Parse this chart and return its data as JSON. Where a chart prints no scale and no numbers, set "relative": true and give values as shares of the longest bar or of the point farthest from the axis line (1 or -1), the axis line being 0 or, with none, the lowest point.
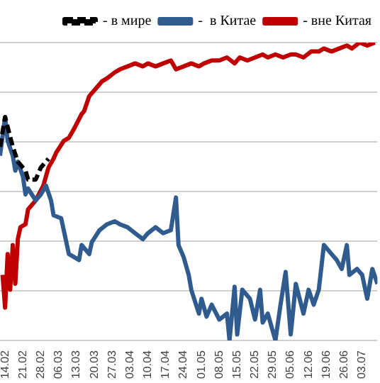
{
  "chart_data": {
    "type": "line",
    "relative": true,
    "grid": "y",
    "legend": "top",
    "xlim": [
      "--02-12",
      "--07-09"
    ],
    "xticks": [
      {
        "value": "--02-14",
        "label": "14.02"
      },
      {
        "value": "--02-21",
        "label": "21.02"
      },
      {
        "value": "--02-28",
        "label": "28.02"
      },
      {
        "value": "--03-06",
        "label": "06.03"
      },
      {
        "value": "--03-13",
        "label": "13.03"
      },
      {
        "value": "--03-20",
        "label": "20.03"
      },
      {
        "value": "--03-27",
        "label": "27.03"
      },
      {
        "value": "--04-03",
        "label": "03.04"
      },
      {
        "value": "--04-10",
        "label": "10.04"
      },
      {
        "value": "--04-17",
        "label": "17.04"
      },
      {
        "value": "--04-24",
        "label": "24.04"
      },
      {
        "value": "--05-01",
        "label": "01.05"
      },
      {
        "value": "--05-08",
        "label": "08.05"
      },
      {
        "value": "--05-15",
        "label": "15.05"
      },
      {
        "value": "--05-22",
        "label": "22.05"
      },
      {
        "value": "--05-29",
        "label": "29.05"
      },
      {
        "value": "--06-05",
        "label": "05.06"
      },
      {
        "value": "--06-12",
        "label": "12.06"
      },
      {
        "value": "--06-19",
        "label": "19.06"
      },
      {
        "value": "--06-26",
        "label": "26.06"
      },
      {
        "value": "--07-03",
        "label": "03.07"
      }
    ],
    "series": [
      {
        "name": "- в мире",
        "color": "#000000",
        "line_style": "dashed",
        "x": [
          "--02-12",
          "--02-14",
          "--02-17",
          "--02-19",
          "--02-22",
          "--02-23",
          "--02-26",
          "--02-28",
          "--03-01",
          "--03-02"
        ],
        "values": [
          0.65,
          0.75,
          0.65,
          0.6,
          0.57,
          0.54,
          0.54,
          0.58,
          0.6,
          0.61
        ]
      },
      {
        "name": "-  в Китае",
        "color": "#2f5b8f",
        "line_style": "solid",
        "x": [
          "--02-12",
          "--02-14",
          "--02-15",
          "--02-17",
          "--02-18",
          "--02-19",
          "--02-21",
          "--02-22",
          "--02-23",
          "--02-26",
          "--02-28",
          "--03-01",
          "--03-03",
          "--03-04",
          "--03-07",
          "--03-08",
          "--03-10",
          "--03-12",
          "--03-14",
          "--03-15",
          "--03-18",
          "--03-19",
          "--03-22",
          "--03-25",
          "--03-28",
          "--03-30",
          "--04-02",
          "--04-05",
          "--04-08",
          "--04-10",
          "--04-13",
          "--04-16",
          "--04-19",
          "--04-21",
          "--04-22",
          "--04-24",
          "--04-26",
          "--04-27",
          "--04-30",
          "--05-01",
          "--05-03",
          "--05-05",
          "--05-08",
          "--05-11",
          "--05-12",
          "--05-14",
          "--05-15",
          "--05-17",
          "--05-20",
          "--05-22",
          "--05-24",
          "--05-25",
          "--05-27",
          "--05-30",
          "--06-01",
          "--06-03",
          "--06-05",
          "--06-07",
          "--06-10",
          "--06-12",
          "--06-14",
          "--06-16",
          "--06-18",
          "--06-21",
          "--06-23",
          "--06-25",
          "--06-27",
          "--06-28",
          "--07-01",
          "--07-03",
          "--07-05",
          "--07-07",
          "--07-09"
        ],
        "values": [
          0.62,
          0.75,
          0.67,
          0.62,
          0.57,
          0.6,
          0.55,
          0.49,
          0.51,
          0.47,
          0.49,
          0.52,
          0.47,
          0.42,
          0.41,
          0.37,
          0.29,
          0.28,
          0.27,
          0.32,
          0.29,
          0.33,
          0.37,
          0.39,
          0.4,
          0.39,
          0.38,
          0.36,
          0.34,
          0.36,
          0.38,
          0.36,
          0.37,
          0.48,
          0.32,
          0.28,
          0.22,
          0.17,
          0.09,
          0.14,
          0.08,
          0.12,
          0.07,
          0.09,
          0,
          0.18,
          0.02,
          0.17,
          0.14,
          0.07,
          0.17,
          0.06,
          0.09,
          0,
          0.12,
          0.23,
          0.02,
          0.19,
          0.09,
          0.17,
          0.12,
          0.17,
          0.32,
          0.29,
          0.27,
          0.24,
          0.32,
          0.22,
          0.24,
          0.22,
          0.14,
          0.24,
          0.19
        ]
      },
      {
        "name": "- вне Китая",
        "color": "#c00000",
        "line_style": "solid",
        "x": [
          "--02-13",
          "--02-14",
          "--02-15",
          "--02-16",
          "--02-17",
          "--02-18",
          "--02-19",
          "--02-20",
          "--02-22",
          "--02-23",
          "--02-26",
          "--02-29",
          "--03-02",
          "--03-04",
          "--03-05",
          "--03-08",
          "--03-10",
          "--03-12",
          "--03-15",
          "--03-16",
          "--03-18",
          "--03-21",
          "--03-23",
          "--03-25",
          "--03-28",
          "--03-30",
          "--04-02",
          "--04-05",
          "--04-08",
          "--04-10",
          "--04-13",
          "--04-16",
          "--04-19",
          "--04-21",
          "--04-24",
          "--04-27",
          "--04-30",
          "--05-02",
          "--05-05",
          "--05-08",
          "--05-11",
          "--05-14",
          "--05-16",
          "--05-19",
          "--05-22",
          "--05-25",
          "--05-27",
          "--05-30",
          "--06-02",
          "--06-05",
          "--06-07",
          "--06-10",
          "--06-13",
          "--06-16",
          "--06-18",
          "--06-21",
          "--06-24",
          "--06-27",
          "--06-29",
          "--07-02",
          "--07-05",
          "--07-08"
        ],
        "values": [
          0.22,
          0.11,
          0.29,
          0.17,
          0.32,
          0.19,
          0.34,
          0.38,
          0.39,
          0.44,
          0.47,
          0.52,
          0.58,
          0.61,
          0.63,
          0.67,
          0.68,
          0.71,
          0.76,
          0.77,
          0.82,
          0.85,
          0.87,
          0.88,
          0.9,
          0.91,
          0.92,
          0.93,
          0.92,
          0.93,
          0.92,
          0.93,
          0.94,
          0.91,
          0.92,
          0.93,
          0.92,
          0.93,
          0.94,
          0.94,
          0.95,
          0.93,
          0.95,
          0.94,
          0.95,
          0.96,
          0.95,
          0.96,
          0.95,
          0.96,
          0.96,
          0.95,
          0.97,
          0.97,
          0.98,
          0.97,
          0.98,
          0.99,
          0.98,
          1,
          0.99,
          1
        ]
      }
    ]
  }
}
